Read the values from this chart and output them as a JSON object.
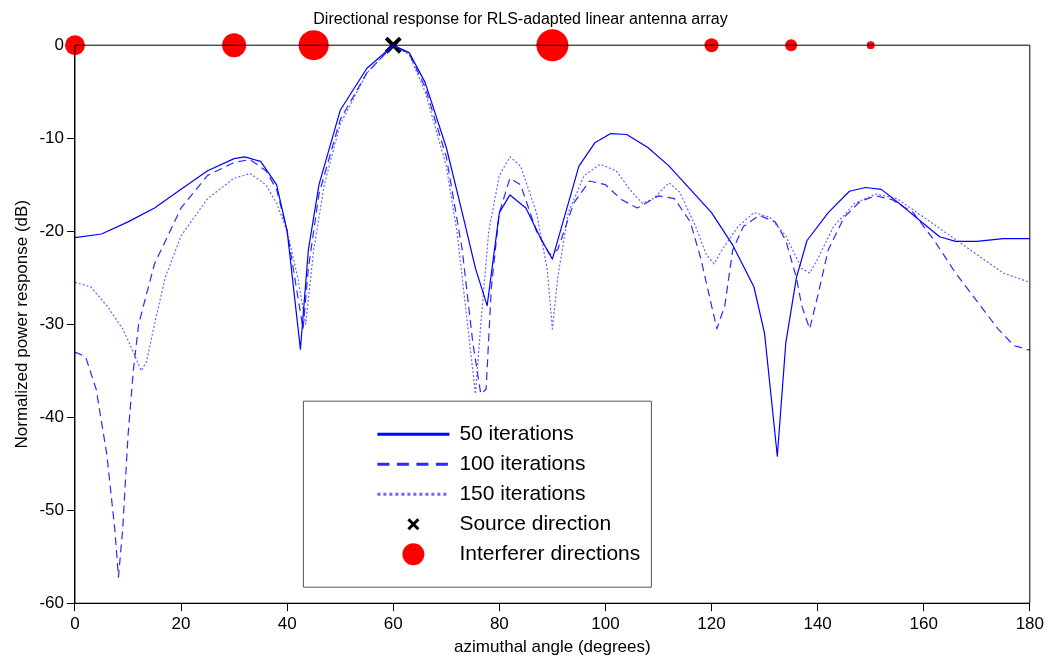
{
  "chart_data": {
    "type": "line",
    "title": "Directional response for RLS-adapted linear antenna array",
    "xlabel": "azimuthal angle (degrees)",
    "ylabel": "Normalized power response (dB)",
    "xlim": [
      0,
      180
    ],
    "xticks": [
      0,
      20,
      40,
      60,
      80,
      100,
      120,
      140,
      160,
      180
    ],
    "ylim": [
      -60,
      0
    ],
    "yticks": [
      -60,
      -50,
      -40,
      -30,
      -20,
      -10,
      0
    ],
    "grid": false,
    "legend": "bottom",
    "series": [
      {
        "name": "50 iterations",
        "color": "#0000ff",
        "line_style": "solid",
        "marker": "none",
        "x": [
          0,
          5,
          10,
          15,
          20,
          25,
          30,
          32,
          35,
          38,
          40,
          42.5,
          44,
          46,
          50,
          55,
          60,
          63,
          66,
          70,
          73,
          75.5,
          77.7,
          80,
          82,
          85,
          88,
          90,
          92,
          95,
          98,
          101,
          104,
          108,
          112,
          116,
          120,
          124,
          128,
          130,
          132.4,
          134,
          136,
          138,
          142,
          146,
          149,
          152,
          156,
          160,
          163,
          166,
          170,
          175,
          180
        ],
        "values": [
          -20.7,
          -20.3,
          -19,
          -17.5,
          -15.5,
          -13.5,
          -12.2,
          -12,
          -12.5,
          -15,
          -20,
          -32.7,
          -22,
          -15,
          -7,
          -2.5,
          0,
          -0.8,
          -4,
          -11,
          -18,
          -24,
          -28,
          -18,
          -16.1,
          -17.5,
          -21,
          -23,
          -19,
          -13,
          -10.5,
          -9.5,
          -9.6,
          -11,
          -13,
          -15.5,
          -18,
          -21.5,
          -26,
          -31,
          -44.2,
          -32,
          -25,
          -21,
          -18,
          -15.7,
          -15.3,
          -15.5,
          -17.3,
          -19.2,
          -20.6,
          -21.1,
          -21.1,
          -20.8,
          -20.8
        ]
      },
      {
        "name": "100 iterations",
        "color": "#2a2aff",
        "line_style": "dashed",
        "marker": "none",
        "x": [
          0,
          2,
          4,
          6,
          7.5,
          8.2,
          9,
          10,
          11,
          12,
          15,
          20,
          25,
          30,
          33,
          36,
          38,
          40,
          42,
          43,
          44,
          46,
          50,
          55,
          60,
          63,
          66,
          70,
          73,
          75,
          76.5,
          77.5,
          78.5,
          80,
          82,
          84,
          87,
          89.5,
          91,
          94,
          97,
          100,
          103,
          106,
          110,
          113,
          116,
          118,
          120,
          121,
          122.5,
          124,
          126,
          129,
          132,
          134,
          136,
          137,
          138.5,
          140,
          142,
          145,
          148,
          151,
          154,
          158,
          162,
          166,
          170,
          174,
          177,
          180
        ],
        "values": [
          -33,
          -33.5,
          -37,
          -44,
          -52,
          -57.2,
          -52,
          -42,
          -35,
          -30,
          -23.5,
          -17.5,
          -14,
          -12.6,
          -12.3,
          -13.5,
          -15.5,
          -20,
          -27,
          -30.5,
          -24,
          -16,
          -8,
          -3,
          0,
          -0.9,
          -4.5,
          -12,
          -22,
          -32,
          -37.5,
          -37,
          -26,
          -18,
          -14.3,
          -15,
          -20,
          -22.5,
          -22,
          -17,
          -14.6,
          -15,
          -16.6,
          -17.5,
          -16.2,
          -16.5,
          -19,
          -23,
          -28,
          -30.5,
          -28,
          -22,
          -19.5,
          -18.3,
          -19,
          -21,
          -25,
          -28,
          -30.5,
          -27,
          -22,
          -18.5,
          -16.8,
          -16.2,
          -16.6,
          -18,
          -21,
          -24.5,
          -27.5,
          -30.5,
          -32.3,
          -32.8
        ]
      },
      {
        "name": "150 iterations",
        "color": "#6666ff",
        "line_style": "dotted",
        "marker": "none",
        "x": [
          0,
          3,
          6,
          9,
          11,
          12.5,
          13.5,
          15,
          17,
          20,
          25,
          30,
          33,
          36,
          38,
          40,
          42,
          43.5,
          45,
          47,
          50,
          55,
          60,
          63,
          66,
          70,
          72,
          74,
          75.5,
          76.5,
          78,
          80,
          82,
          84,
          87,
          89,
          90,
          91,
          93,
          96,
          99,
          102,
          105,
          107,
          109,
          112,
          114,
          117,
          119,
          120.5,
          122,
          125,
          128,
          131,
          134,
          137,
          138.5,
          140,
          143,
          147,
          151,
          155,
          160,
          165,
          170,
          175,
          180
        ],
        "values": [
          -25.5,
          -26,
          -28,
          -30.5,
          -33,
          -35,
          -34,
          -30,
          -25,
          -20.5,
          -16.5,
          -14.3,
          -13.8,
          -15,
          -17,
          -20,
          -25,
          -30,
          -22,
          -15,
          -8.5,
          -3,
          0,
          -1,
          -5,
          -13,
          -20,
          -30,
          -37.5,
          -30,
          -20,
          -14,
          -12,
          -13,
          -18,
          -24,
          -30.5,
          -25,
          -18,
          -14,
          -12.8,
          -13.5,
          -15.8,
          -17,
          -16.5,
          -14.8,
          -15.8,
          -19.5,
          -22.5,
          -23.5,
          -22,
          -19.5,
          -18,
          -18.5,
          -20.5,
          -24,
          -24.5,
          -23,
          -19.5,
          -17,
          -16,
          -16.5,
          -18.5,
          -20.5,
          -22.5,
          -24.5,
          -25.5
        ]
      },
      {
        "name": "Source direction",
        "type": "scatter",
        "color": "#000000",
        "marker": "cross",
        "x": [
          60
        ],
        "values": [
          0
        ]
      },
      {
        "name": "Interferer directions",
        "type": "bubble",
        "color": "#ff0000",
        "marker": "circle",
        "x": [
          0,
          30,
          45,
          90,
          120,
          135,
          150
        ],
        "values": [
          0,
          0,
          0,
          0,
          0,
          0,
          0
        ],
        "sizes": [
          0.39,
          0.56,
          0.88,
          1,
          0.19,
          0.14,
          0.06
        ]
      }
    ]
  }
}
